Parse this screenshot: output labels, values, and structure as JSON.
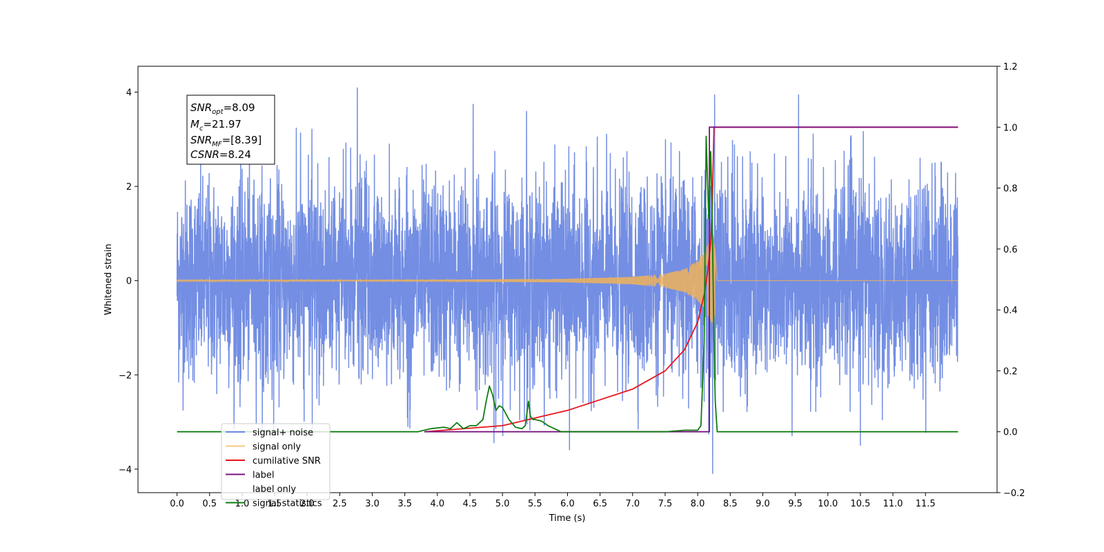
{
  "chart_data": {
    "type": "line",
    "xlabel": "Time (s)",
    "ylabel": "Whitened strain",
    "xlim": [
      -0.6,
      12.6
    ],
    "ylim": [
      -4.5,
      4.55
    ],
    "y2lim": [
      -0.2,
      1.2
    ],
    "x_ticks": [
      "0.0",
      "0.5",
      "1.0",
      "1.5",
      "2.0",
      "2.5",
      "3.0",
      "3.5",
      "4.0",
      "4.5",
      "5.0",
      "5.5",
      "6.0",
      "6.5",
      "7.0",
      "7.5",
      "8.0",
      "8.5",
      "9.0",
      "9.5",
      "10.0",
      "10.5",
      "11.0",
      "11.5"
    ],
    "y_ticks": [
      "4",
      "2",
      "0",
      "−2",
      "−4"
    ],
    "y2_ticks": [
      "1.2",
      "1.0",
      "0.8",
      "0.6",
      "0.4",
      "0.2",
      "0.0",
      "−0.2"
    ],
    "legend": {
      "placement": "lower-left",
      "entries": [
        "signal+ noise",
        "signal only",
        "cumilative SNR",
        "label",
        "label only",
        "signal statistics"
      ]
    },
    "annotation": {
      "snr_opt_base": "SNR",
      "snr_opt_sub": "opt",
      "snr_opt_val": "=8.09",
      "mc_base": "M",
      "mc_sub": "c",
      "mc_val": "=21.97",
      "snr_mf_base": "SNR",
      "snr_mf_sub": "MF",
      "snr_mf_val": "=[8.39]",
      "csnr_base": "CSNR",
      "csnr_val": "=8.24"
    },
    "series": [
      {
        "name": "signal+ noise",
        "axis": "left",
        "color": "#6b88e2",
        "description": "whitened noise plus signal, approx. Gaussian with std ~1.1, spanning 0.0 to 12.0 s; notable peaks",
        "x": [
          0.0,
          12.0
        ],
        "peaks": [
          [
            2.77,
            4.1
          ],
          [
            8.26,
            3.95
          ],
          [
            9.55,
            3.95
          ],
          [
            4.55,
            3.75
          ],
          [
            5.37,
            3.6
          ],
          [
            8.23,
            -4.1
          ],
          [
            6.03,
            -3.6
          ],
          [
            10.5,
            -3.5
          ],
          [
            4.87,
            -3.45
          ],
          [
            9.45,
            -3.3
          ]
        ]
      },
      {
        "name": "signal only",
        "axis": "left",
        "color": "#f0b35a",
        "description": "chirp waveform with amplitude growing toward merger at ~8.25 s",
        "x": [
          0.0,
          12.0
        ],
        "merger_time": 8.25,
        "amplitude_points": [
          [
            0.0,
            0.01
          ],
          [
            4.0,
            0.02
          ],
          [
            6.0,
            0.04
          ],
          [
            7.0,
            0.08
          ],
          [
            7.5,
            0.15
          ],
          [
            7.8,
            0.25
          ],
          [
            8.0,
            0.42
          ],
          [
            8.1,
            0.6
          ],
          [
            8.2,
            0.9
          ],
          [
            8.25,
            1.0
          ],
          [
            8.3,
            0.0
          ]
        ]
      },
      {
        "name": "cumilative SNR",
        "axis": "right",
        "color": "#e8141b",
        "x": [
          3.8,
          5.0,
          6.0,
          7.0,
          7.5,
          7.8,
          8.0,
          8.1,
          8.15,
          8.2,
          8.22,
          8.25,
          12.0
        ],
        "y": [
          0.0,
          0.02,
          0.07,
          0.14,
          0.2,
          0.27,
          0.36,
          0.45,
          0.52,
          0.62,
          0.7,
          1.0,
          1.0
        ]
      },
      {
        "name": "label",
        "axis": "right",
        "color": "#7b1380",
        "x": [
          3.8,
          8.18,
          8.18,
          8.26,
          8.26,
          12.0
        ],
        "y": [
          0.0,
          0.0,
          1.0,
          1.0,
          1.0,
          1.0
        ]
      },
      {
        "name": "signal statistics",
        "axis": "right",
        "color": "#0f7d0f",
        "x": [
          0.0,
          3.7,
          3.9,
          4.1,
          4.2,
          4.3,
          4.4,
          4.5,
          4.6,
          4.7,
          4.75,
          4.8,
          4.85,
          4.9,
          4.95,
          5.0,
          5.05,
          5.1,
          5.2,
          5.3,
          5.35,
          5.4,
          5.43,
          5.47,
          5.5,
          5.6,
          5.7,
          5.8,
          5.9,
          6.0,
          7.0,
          7.5,
          7.8,
          8.0,
          8.05,
          8.1,
          8.13,
          8.17,
          8.2,
          8.22,
          8.25,
          8.27,
          8.3,
          8.33,
          12.0
        ],
        "y": [
          0.0,
          0.0,
          0.01,
          0.015,
          0.01,
          0.03,
          0.01,
          0.02,
          0.02,
          0.04,
          0.1,
          0.15,
          0.12,
          0.07,
          0.085,
          0.08,
          0.06,
          0.04,
          0.015,
          0.01,
          0.02,
          0.1,
          0.05,
          0.04,
          0.04,
          0.035,
          0.02,
          0.01,
          0.0,
          0.0,
          0.0,
          0.0,
          0.005,
          0.005,
          0.02,
          0.3,
          0.97,
          0.7,
          0.92,
          0.75,
          0.3,
          0.1,
          0.0,
          0.0,
          0.0
        ]
      }
    ]
  }
}
